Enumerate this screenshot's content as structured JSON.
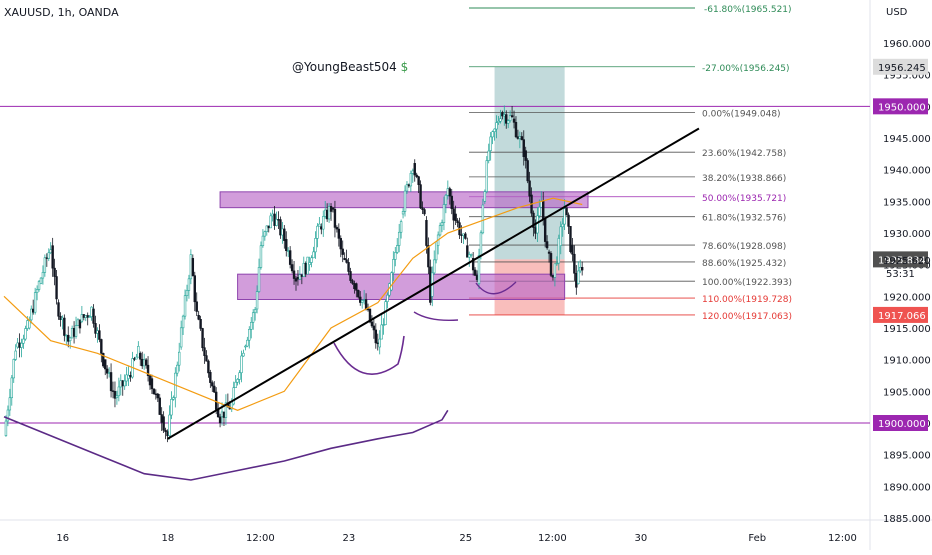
{
  "header": {
    "symbol": "XAUUSD, 1h, OANDA"
  },
  "watermark": {
    "text": "@YoungBeast504",
    "icon": "money-bag-icon"
  },
  "colors": {
    "up": "#26a69a",
    "down": "#131722",
    "ma": "#f39c12",
    "ma_long": "#5b2a86",
    "trend": "#000000",
    "zone": "#ba68c8",
    "hline": "#9c27b0",
    "tp": "#5f9ea0",
    "sl": "#ef5350",
    "fib": "#555555"
  },
  "chart_data": {
    "type": "line",
    "title": "",
    "currency": "USD",
    "ylim": [
      1884,
      1967
    ],
    "xlim": [
      0,
      145
    ],
    "y_ticks": [
      "1885.000",
      "1890.000",
      "1895.000",
      "1900.000",
      "1905.000",
      "1910.000",
      "1915.000",
      "1920.000",
      "1925.000",
      "1930.000",
      "1935.000",
      "1940.000",
      "1945.000",
      "1950.000",
      "1955.000",
      "1960.000"
    ],
    "y_tick_values": [
      1885,
      1890,
      1895,
      1900,
      1905,
      1910,
      1915,
      1920,
      1925,
      1930,
      1935,
      1940,
      1945,
      1950,
      1955,
      1960
    ],
    "x_ticks": [
      {
        "label": "16",
        "x": 10
      },
      {
        "label": "18",
        "x": 28
      },
      {
        "label": "12:00",
        "x": 44
      },
      {
        "label": "23",
        "x": 59
      },
      {
        "label": "25",
        "x": 79
      },
      {
        "label": "12:00",
        "x": 94
      },
      {
        "label": "30",
        "x": 109
      },
      {
        "label": "Feb",
        "x": 129
      },
      {
        "label": "12:00",
        "x": 144
      }
    ],
    "price_path": [
      [
        0,
        1898
      ],
      [
        2,
        1912
      ],
      [
        4,
        1915
      ],
      [
        6,
        1922
      ],
      [
        8,
        1928
      ],
      [
        9,
        1919
      ],
      [
        11,
        1913
      ],
      [
        13,
        1916
      ],
      [
        15,
        1918
      ],
      [
        17,
        1910
      ],
      [
        19,
        1904
      ],
      [
        21,
        1907
      ],
      [
        23,
        1911
      ],
      [
        25,
        1907
      ],
      [
        27,
        1901
      ],
      [
        28,
        1898
      ],
      [
        30,
        1912
      ],
      [
        32,
        1926
      ],
      [
        33,
        1917
      ],
      [
        35,
        1908
      ],
      [
        37,
        1901
      ],
      [
        39,
        1903
      ],
      [
        41,
        1912
      ],
      [
        43,
        1918
      ],
      [
        44,
        1928
      ],
      [
        46,
        1933
      ],
      [
        48,
        1929
      ],
      [
        50,
        1923
      ],
      [
        52,
        1925
      ],
      [
        54,
        1931
      ],
      [
        56,
        1934
      ],
      [
        58,
        1926
      ],
      [
        60,
        1922
      ],
      [
        62,
        1918
      ],
      [
        64,
        1912
      ],
      [
        66,
        1921
      ],
      [
        68,
        1933
      ],
      [
        70,
        1941
      ],
      [
        72,
        1932
      ],
      [
        73,
        1920
      ],
      [
        74,
        1928
      ],
      [
        76,
        1937
      ],
      [
        77,
        1933
      ],
      [
        79,
        1928
      ],
      [
        80,
        1926
      ],
      [
        81,
        1922
      ],
      [
        82,
        1935
      ],
      [
        83,
        1943
      ],
      [
        85,
        1949
      ],
      [
        87,
        1948
      ],
      [
        89,
        1943
      ],
      [
        90,
        1936
      ],
      [
        91,
        1930
      ],
      [
        92,
        1935
      ],
      [
        93,
        1927
      ],
      [
        94,
        1923
      ],
      [
        95,
        1928
      ],
      [
        96,
        1934
      ],
      [
        97,
        1928
      ],
      [
        98,
        1922
      ],
      [
        99,
        1925
      ]
    ],
    "series": [
      {
        "values": [
          [
            0,
            1920
          ],
          [
            8,
            1913
          ],
          [
            16,
            1911
          ],
          [
            24,
            1908
          ],
          [
            32,
            1905
          ],
          [
            40,
            1902
          ],
          [
            48,
            1905
          ],
          [
            56,
            1915
          ],
          [
            64,
            1919
          ],
          [
            70,
            1926
          ],
          [
            76,
            1930
          ],
          [
            82,
            1932
          ],
          [
            88,
            1934
          ],
          [
            94,
            1935.5
          ],
          [
            99,
            1934.5
          ]
        ]
      },
      {
        "values": [
          [
            0,
            1901
          ],
          [
            8,
            1898
          ],
          [
            16,
            1895
          ],
          [
            24,
            1892
          ],
          [
            32,
            1891
          ],
          [
            40,
            1892.5
          ],
          [
            48,
            1894
          ],
          [
            56,
            1896
          ],
          [
            64,
            1897.5
          ],
          [
            70,
            1898.5
          ],
          [
            75,
            1900.5
          ],
          [
            76,
            1902
          ]
        ]
      }
    ],
    "hlines": [
      {
        "label": "1950.000",
        "price": 1950,
        "color": "#9c27b0"
      },
      {
        "label": "1900.000",
        "price": 1900,
        "color": "#9c27b0"
      }
    ],
    "price_labels": [
      {
        "label": "1956.245",
        "price": 1956.245,
        "bg": "#dcdcdc",
        "fg": "#131722"
      },
      {
        "label": "1925.834",
        "price": 1925.834,
        "bg": "#505050",
        "fg": "#ffffff"
      },
      {
        "label": "1917.066",
        "price": 1917.066,
        "bg": "#ef5350",
        "fg": "#ffffff"
      }
    ],
    "countdown": {
      "price_text": "1925.620",
      "timer": "53:31"
    },
    "fib_levels": [
      {
        "label": "-27.00%(1956.245)",
        "price": 1956.245,
        "color": "#2e8b57"
      },
      {
        "label": "0.00%(1949.048)",
        "price": 1949.048,
        "color": "#555555"
      },
      {
        "label": "23.60%(1942.758)",
        "price": 1942.758,
        "color": "#555555"
      },
      {
        "label": "38.20%(1938.866)",
        "price": 1938.866,
        "color": "#555555"
      },
      {
        "label": "50.00%(1935.721)",
        "price": 1935.721,
        "color": "#9c27b0"
      },
      {
        "label": "61.80%(1932.576)",
        "price": 1932.576,
        "color": "#555555"
      },
      {
        "label": "78.60%(1928.098)",
        "price": 1928.098,
        "color": "#555555"
      },
      {
        "label": "88.60%(1925.432)",
        "price": 1925.432,
        "color": "#555555"
      },
      {
        "label": "100.00%(1922.393)",
        "price": 1922.393,
        "color": "#555555"
      },
      {
        "label": "110.00%(1919.728)",
        "price": 1919.728,
        "color": "#e53935"
      },
      {
        "label": "120.00%(1917.063)",
        "price": 1917.063,
        "color": "#e53935"
      }
    ],
    "top_fib_label": "-61.80%(1965.521)",
    "trendline": [
      [
        28,
        1897.5
      ],
      [
        119,
        1946.5
      ]
    ],
    "zones": [
      {
        "x0": 37,
        "x1": 100,
        "y0": 1934,
        "y1": 1936.5
      },
      {
        "x0": 40,
        "x1": 96,
        "y0": 1919.5,
        "y1": 1923.5
      }
    ],
    "position": {
      "x0": 84,
      "x1": 96,
      "entry": 1925.834,
      "target": 1956.245,
      "stop": 1917.066
    }
  }
}
